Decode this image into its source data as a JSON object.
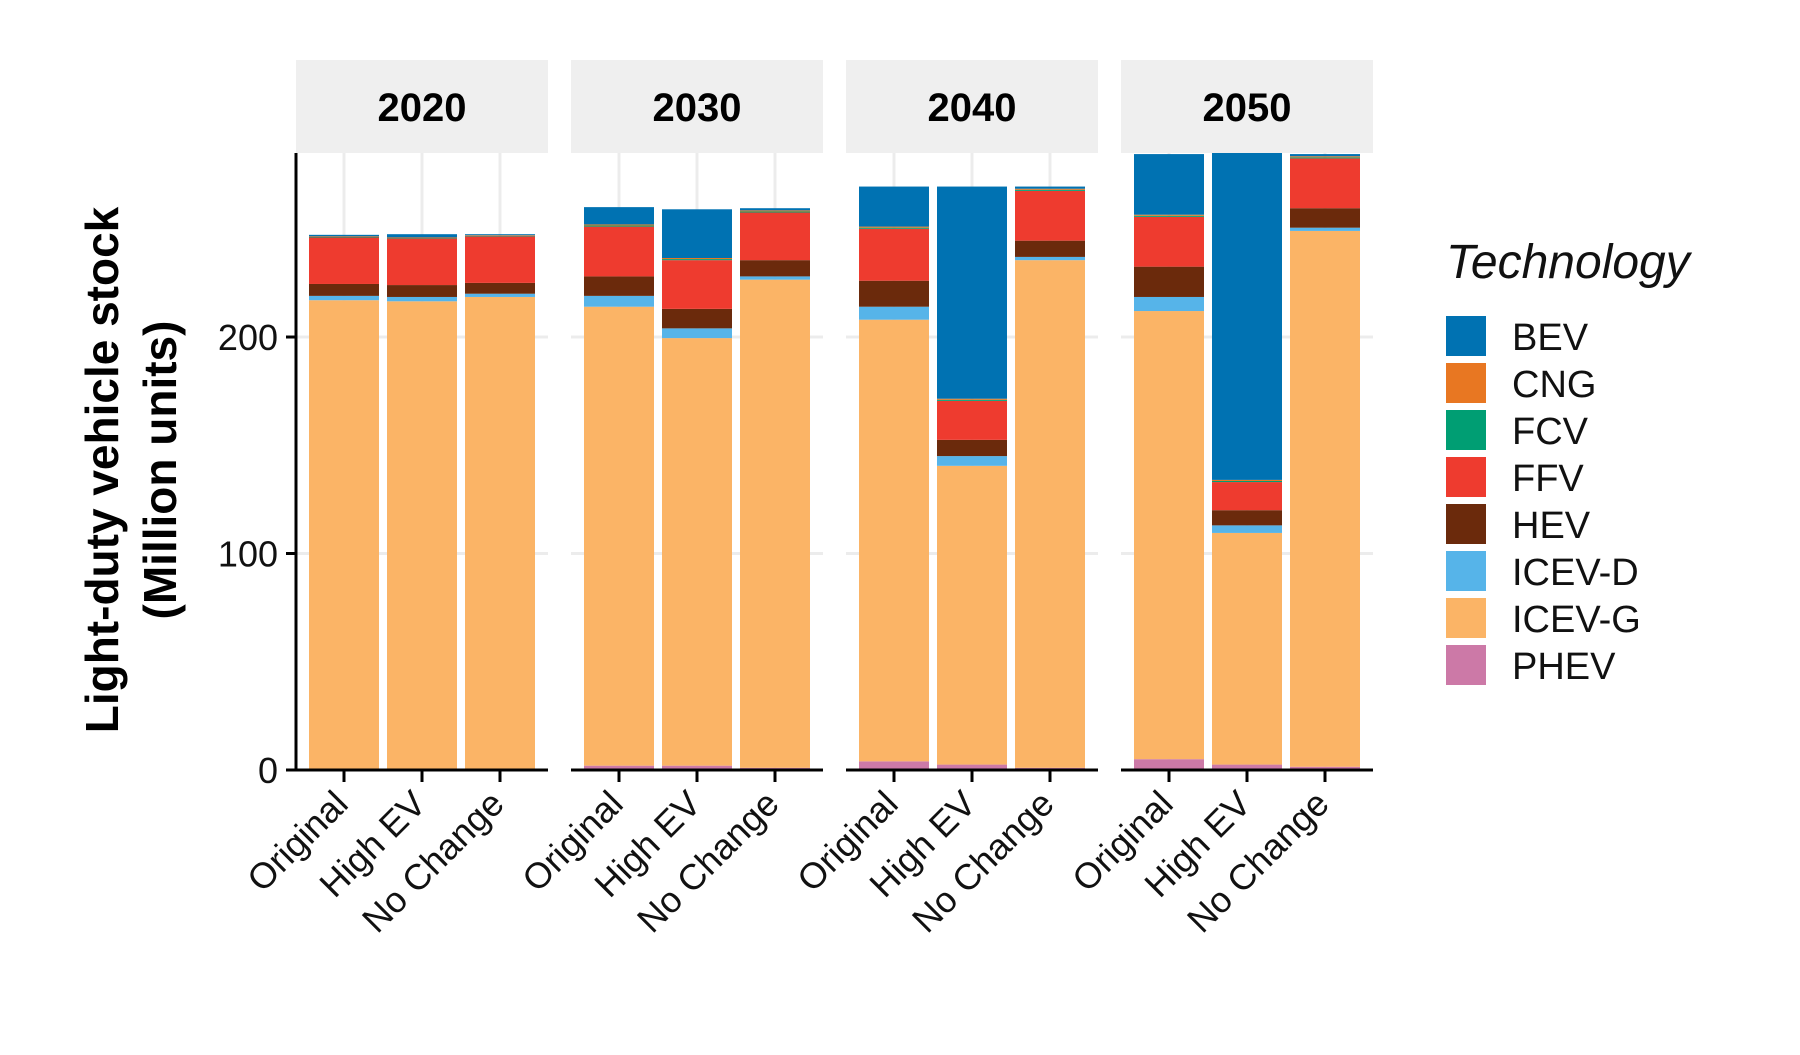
{
  "chart_data": {
    "type": "bar",
    "stacked": true,
    "facets": [
      "2020",
      "2030",
      "2040",
      "2050"
    ],
    "categories": [
      "Original",
      "High EV",
      "No Change"
    ],
    "ylabel_line1": "Light-duty vehicle stock",
    "ylabel_line2": "(Million units)",
    "ylim": [
      0,
      285
    ],
    "yticks": [
      0,
      100,
      200
    ],
    "grid": true,
    "legend_title": "Technology",
    "legend_position": "right",
    "series": [
      {
        "name": "BEV",
        "color": "#0072B2"
      },
      {
        "name": "CNG",
        "color": "#E87722"
      },
      {
        "name": "FCV",
        "color": "#009E73"
      },
      {
        "name": "FFV",
        "color": "#EE3B2F"
      },
      {
        "name": "HEV",
        "color": "#6B2A0C"
      },
      {
        "name": "ICEV-D",
        "color": "#56B4E9"
      },
      {
        "name": "ICEV-G",
        "color": "#FBB466"
      },
      {
        "name": "PHEV",
        "color": "#CC79A7"
      }
    ],
    "stack_order_bottom_to_top": [
      "PHEV",
      "ICEV-G",
      "ICEV-D",
      "HEV",
      "FFV",
      "FCV",
      "CNG",
      "BEV"
    ],
    "data": {
      "2020": {
        "Original": {
          "PHEV": 0.5,
          "ICEV-G": 216.5,
          "ICEV-D": 2,
          "HEV": 5.5,
          "FFV": 21.5,
          "FCV": 0.2,
          "CNG": 0.3,
          "BEV": 0.7
        },
        "High EV": {
          "PHEV": 0.5,
          "ICEV-G": 216,
          "ICEV-D": 2,
          "HEV": 5.5,
          "FFV": 21.5,
          "FCV": 0.2,
          "CNG": 0.3,
          "BEV": 1.5
        },
        "No Change": {
          "PHEV": 0.5,
          "ICEV-G": 218,
          "ICEV-D": 1.5,
          "HEV": 5,
          "FFV": 21.5,
          "FCV": 0.2,
          "CNG": 0.3,
          "BEV": 0.5
        }
      },
      "2030": {
        "Original": {
          "PHEV": 2,
          "ICEV-G": 212,
          "ICEV-D": 5,
          "HEV": 9,
          "FFV": 23,
          "FCV": 0.5,
          "CNG": 0.5,
          "BEV": 8
        },
        "High EV": {
          "PHEV": 2,
          "ICEV-G": 197.5,
          "ICEV-D": 4.5,
          "HEV": 9,
          "FFV": 22.5,
          "FCV": 0.5,
          "CNG": 0.5,
          "BEV": 22.5
        },
        "No Change": {
          "PHEV": 1,
          "ICEV-G": 225.5,
          "ICEV-D": 1.5,
          "HEV": 7.5,
          "FFV": 22,
          "FCV": 0.5,
          "CNG": 0.5,
          "BEV": 1
        }
      },
      "2040": {
        "Original": {
          "PHEV": 4,
          "ICEV-G": 204,
          "ICEV-D": 6,
          "HEV": 12,
          "FFV": 24,
          "FCV": 0.5,
          "CNG": 0.5,
          "BEV": 18.5
        },
        "High EV": {
          "PHEV": 2.5,
          "ICEV-G": 138,
          "ICEV-D": 4.5,
          "HEV": 7.5,
          "FFV": 18,
          "FCV": 0.5,
          "CNG": 0.5,
          "BEV": 98
        },
        "No Change": {
          "PHEV": 1,
          "ICEV-G": 234.5,
          "ICEV-D": 1.5,
          "HEV": 7.5,
          "FFV": 23,
          "FCV": 0.5,
          "CNG": 0.5,
          "BEV": 1
        }
      },
      "2050": {
        "Original": {
          "PHEV": 5,
          "ICEV-G": 207,
          "ICEV-D": 6.5,
          "HEV": 14,
          "FFV": 23,
          "FCV": 0.5,
          "CNG": 0.5,
          "BEV": 28
        },
        "High EV": {
          "PHEV": 2.5,
          "ICEV-G": 107,
          "ICEV-D": 3.5,
          "HEV": 7,
          "FFV": 13,
          "FCV": 0.5,
          "CNG": 0.5,
          "BEV": 151
        },
        "No Change": {
          "PHEV": 1.5,
          "ICEV-G": 247.5,
          "ICEV-D": 1.5,
          "HEV": 9,
          "FFV": 23,
          "FCV": 0.5,
          "CNG": 0.5,
          "BEV": 1
        }
      }
    }
  }
}
